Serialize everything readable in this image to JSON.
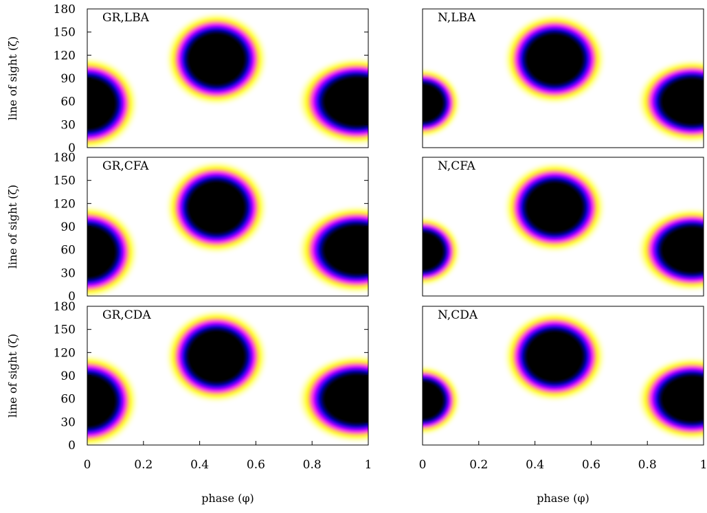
{
  "colors": {
    "scale": [
      "#000000",
      "#0000ff",
      "#ff00ff",
      "#ffff00",
      "#ffffff"
    ],
    "frame": "#000000"
  },
  "chart_data": [
    {
      "type": "heatmap",
      "panel": "GR,LBA",
      "xlim": [
        0,
        1
      ],
      "ylim": [
        0,
        180
      ],
      "ylabel": "line of sight (ζ)",
      "xlabel": "",
      "yticks": [
        "0",
        "30",
        "60",
        "90",
        "120",
        "150",
        "180"
      ],
      "xticks": [],
      "blobs": [
        {
          "x": 0.46,
          "y": 115,
          "rx": 0.12,
          "ry": 40,
          "label": "central spot"
        },
        {
          "x": 0.0,
          "y": 57,
          "rx": 0.12,
          "ry": 40,
          "label": "left edge spot"
        },
        {
          "x": 0.96,
          "y": 60,
          "rx": 0.14,
          "ry": 38,
          "label": "right edge spot"
        }
      ]
    },
    {
      "type": "heatmap",
      "panel": "N,LBA",
      "xlim": [
        0,
        1
      ],
      "ylim": [
        0,
        180
      ],
      "ylabel": "",
      "xlabel": "",
      "yticks": [],
      "xticks": [],
      "blobs": [
        {
          "x": 0.47,
          "y": 115,
          "rx": 0.12,
          "ry": 39,
          "label": "central spot"
        },
        {
          "x": 0.0,
          "y": 58,
          "rx": 0.09,
          "ry": 30,
          "label": "left edge spot"
        },
        {
          "x": 0.96,
          "y": 60,
          "rx": 0.13,
          "ry": 36,
          "label": "right edge spot"
        }
      ]
    },
    {
      "type": "heatmap",
      "panel": "GR,CFA",
      "xlim": [
        0,
        1
      ],
      "ylim": [
        0,
        180
      ],
      "ylabel": "line of sight (ζ)",
      "xlabel": "",
      "yticks": [
        "0",
        "30",
        "60",
        "90",
        "120",
        "150",
        "180"
      ],
      "xticks": [],
      "blobs": [
        {
          "x": 0.46,
          "y": 115,
          "rx": 0.12,
          "ry": 40,
          "label": "central spot"
        },
        {
          "x": 0.0,
          "y": 57,
          "rx": 0.12,
          "ry": 40,
          "label": "left edge spot"
        },
        {
          "x": 0.96,
          "y": 60,
          "rx": 0.14,
          "ry": 38,
          "label": "right edge spot"
        }
      ]
    },
    {
      "type": "heatmap",
      "panel": "N,CFA",
      "xlim": [
        0,
        1
      ],
      "ylim": [
        0,
        180
      ],
      "ylabel": "",
      "xlabel": "",
      "yticks": [],
      "xticks": [],
      "blobs": [
        {
          "x": 0.47,
          "y": 115,
          "rx": 0.12,
          "ry": 39,
          "label": "central spot"
        },
        {
          "x": 0.0,
          "y": 58,
          "rx": 0.09,
          "ry": 30,
          "label": "left edge spot"
        },
        {
          "x": 0.96,
          "y": 60,
          "rx": 0.13,
          "ry": 36,
          "label": "right edge spot"
        }
      ]
    },
    {
      "type": "heatmap",
      "panel": "GR,CDA",
      "xlim": [
        0,
        1
      ],
      "ylim": [
        0,
        180
      ],
      "ylabel": "line of sight (ζ)",
      "xlabel": "phase (φ)",
      "yticks": [
        "0",
        "30",
        "60",
        "90",
        "120",
        "150",
        "180"
      ],
      "xticks": [
        "0",
        "0.2",
        "0.4",
        "0.6",
        "0.8",
        "1"
      ],
      "blobs": [
        {
          "x": 0.46,
          "y": 115,
          "rx": 0.12,
          "ry": 40,
          "label": "central spot"
        },
        {
          "x": 0.0,
          "y": 57,
          "rx": 0.12,
          "ry": 40,
          "label": "left edge spot"
        },
        {
          "x": 0.96,
          "y": 60,
          "rx": 0.14,
          "ry": 38,
          "label": "right edge spot"
        }
      ]
    },
    {
      "type": "heatmap",
      "panel": "N,CDA",
      "xlim": [
        0,
        1
      ],
      "ylim": [
        0,
        180
      ],
      "ylabel": "",
      "xlabel": "phase (φ)",
      "yticks": [],
      "xticks": [
        "0",
        "0.2",
        "0.4",
        "0.6",
        "0.8",
        "1"
      ],
      "blobs": [
        {
          "x": 0.47,
          "y": 115,
          "rx": 0.12,
          "ry": 39,
          "label": "central spot"
        },
        {
          "x": 0.0,
          "y": 58,
          "rx": 0.09,
          "ry": 30,
          "label": "left edge spot"
        },
        {
          "x": 0.96,
          "y": 60,
          "rx": 0.13,
          "ry": 36,
          "label": "right edge spot"
        }
      ]
    }
  ]
}
